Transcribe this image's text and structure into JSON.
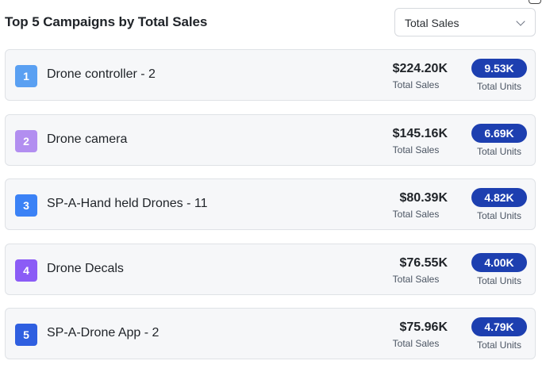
{
  "header": {
    "title": "Top 5 Campaigns by Total Sales",
    "metric_select": {
      "value": "Total Sales"
    }
  },
  "campaigns": [
    {
      "rank": "1",
      "name": "Drone controller - 2",
      "sales": "$224.20K",
      "sales_label": "Total Sales",
      "units": "9.53K",
      "units_label": "Total Units",
      "rank_color": "#5aa0f2"
    },
    {
      "rank": "2",
      "name": "Drone camera",
      "sales": "$145.16K",
      "sales_label": "Total Sales",
      "units": "6.69K",
      "units_label": "Total Units",
      "rank_color": "#b28ef0"
    },
    {
      "rank": "3",
      "name": "SP-A-Hand held Drones - 11",
      "sales": "$80.39K",
      "sales_label": "Total Sales",
      "units": "4.82K",
      "units_label": "Total Units",
      "rank_color": "#3b82f6"
    },
    {
      "rank": "4",
      "name": "Drone Decals",
      "sales": "$76.55K",
      "sales_label": "Total Sales",
      "units": "4.00K",
      "units_label": "Total Units",
      "rank_color": "#8b5cf6"
    },
    {
      "rank": "5",
      "name": "SP-A-Drone App - 2",
      "sales": "$75.96K",
      "sales_label": "Total Sales",
      "units": "4.79K",
      "units_label": "Total Units",
      "rank_color": "#2f5fe0"
    }
  ],
  "colors": {
    "units_badge": "#1d3fb0",
    "card_bg": "#f6f7f9",
    "card_border": "#dfe2e6"
  }
}
